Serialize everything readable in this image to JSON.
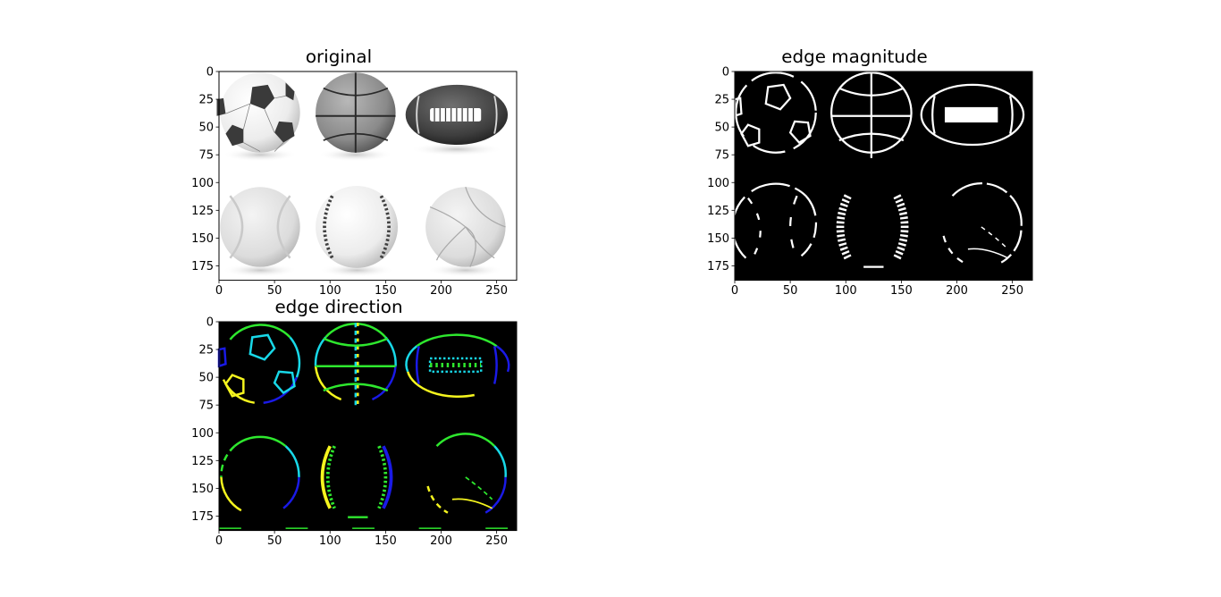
{
  "colors": {
    "background": "#ffffff",
    "axes_frame": "#000000",
    "edge_bg": "#000000",
    "edge_white": "#ffffff",
    "dir_yellow": "#f5f51e",
    "dir_green": "#2ee82e",
    "dir_cyan": "#18d8e8",
    "dir_blue": "#1a1ae6"
  },
  "chart_data": [
    {
      "type": "image",
      "title": "original",
      "image_size": [
        268,
        188
      ],
      "xlim": [
        0,
        268
      ],
      "ylim": [
        188,
        0
      ],
      "xticks": [
        0,
        50,
        100,
        150,
        200,
        250
      ],
      "yticks": [
        0,
        25,
        50,
        75,
        100,
        125,
        150,
        175
      ],
      "colormap": "gray",
      "balls": [
        {
          "kind": "soccer",
          "cx": 37,
          "cy": 37,
          "r": 36
        },
        {
          "kind": "basketball",
          "cx": 123,
          "cy": 37,
          "r": 36
        },
        {
          "kind": "football",
          "cx": 214,
          "cy": 39,
          "rx": 46,
          "ry": 27
        },
        {
          "kind": "tennis",
          "cx": 37,
          "cy": 140,
          "r": 36
        },
        {
          "kind": "baseball",
          "cx": 124,
          "cy": 140,
          "r": 37
        },
        {
          "kind": "volleyball",
          "cx": 222,
          "cy": 140,
          "r": 36
        }
      ]
    },
    {
      "type": "image",
      "title": "edge magnitude",
      "image_size": [
        268,
        188
      ],
      "xlim": [
        0,
        268
      ],
      "ylim": [
        188,
        0
      ],
      "xticks": [
        0,
        50,
        100,
        150,
        200,
        250
      ],
      "yticks": [
        0,
        25,
        50,
        75,
        100,
        125,
        150,
        175
      ],
      "colormap": "binary"
    },
    {
      "type": "image",
      "title": "edge direction",
      "image_size": [
        268,
        188
      ],
      "xlim": [
        0,
        268
      ],
      "ylim": [
        188,
        0
      ],
      "xticks": [
        0,
        50,
        100,
        150,
        200,
        250
      ],
      "yticks": [
        0,
        25,
        50,
        75,
        100,
        125,
        150,
        175
      ],
      "colormap": "direction"
    }
  ]
}
